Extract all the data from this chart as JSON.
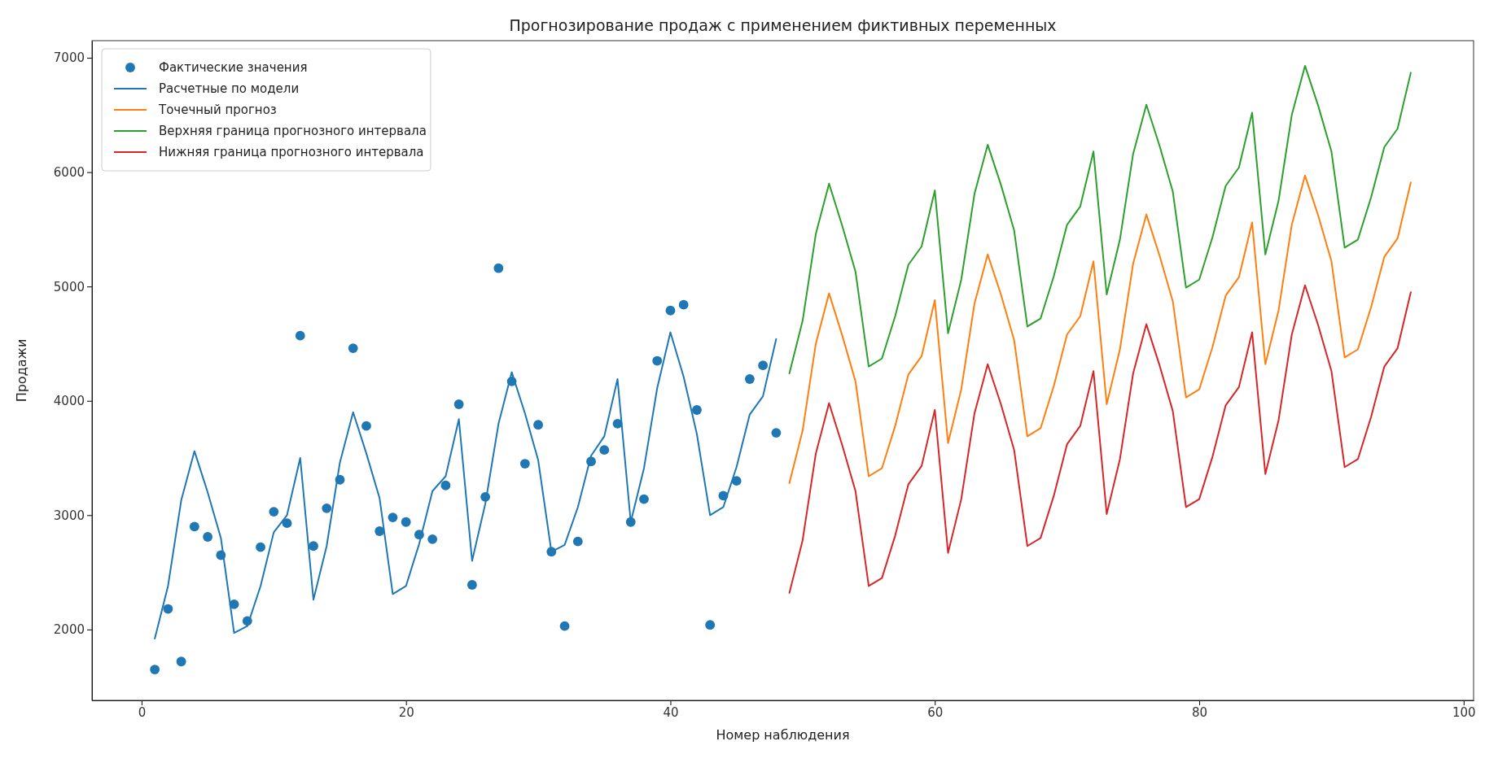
{
  "chart_data": {
    "type": "line",
    "title": "Прогнозирование продаж с применением фиктивных переменных",
    "xlabel": "Номер наблюдения",
    "ylabel": "Продажи",
    "xlim": [
      -3.75,
      100.75
    ],
    "xticks": [
      0,
      20,
      40,
      60,
      80,
      100
    ],
    "ylim": [
      1380,
      7150
    ],
    "yticks": [
      2000,
      3000,
      4000,
      5000,
      6000,
      7000
    ],
    "grid": false,
    "legend": "top left",
    "line_style": "solid",
    "series": [
      {
        "name": "Фактические значения",
        "type": "scatter",
        "marker": "circle",
        "color": "#1f77b4",
        "x": [
          1,
          2,
          3,
          4,
          5,
          6,
          7,
          8,
          9,
          10,
          11,
          12,
          13,
          14,
          15,
          16,
          17,
          18,
          19,
          20,
          21,
          22,
          23,
          24,
          25,
          26,
          27,
          28,
          29,
          30,
          31,
          32,
          33,
          34,
          35,
          36,
          37,
          38,
          39,
          40,
          41,
          42,
          43,
          44,
          45,
          46,
          47,
          48
        ],
        "values": [
          1650,
          2180,
          1720,
          2900,
          2810,
          2650,
          2220,
          2075,
          2720,
          3030,
          2930,
          4570,
          2730,
          3060,
          3310,
          4460,
          3780,
          2860,
          2980,
          2940,
          2830,
          2790,
          3260,
          3970,
          2390,
          3160,
          5160,
          4170,
          3450,
          3790,
          2680,
          2030,
          2770,
          3470,
          3570,
          3800,
          2940,
          3140,
          4350,
          4790,
          4840,
          3920,
          2040,
          3170,
          3300,
          4190,
          4310,
          3720
        ]
      },
      {
        "name": "Расчетные по модели",
        "color": "#1f77b4",
        "x": [
          1,
          2,
          3,
          4,
          5,
          6,
          7,
          8,
          9,
          10,
          11,
          12,
          13,
          14,
          15,
          16,
          17,
          18,
          19,
          20,
          21,
          22,
          23,
          24,
          25,
          26,
          27,
          28,
          29,
          30,
          31,
          32,
          33,
          34,
          35,
          36,
          37,
          38,
          39,
          40,
          41,
          42,
          43,
          44,
          45,
          46,
          47,
          48
        ],
        "values": [
          1920,
          2380,
          3130,
          3560,
          3200,
          2800,
          1970,
          2030,
          2380,
          2850,
          3000,
          3500,
          2260,
          2730,
          3460,
          3900,
          3540,
          3150,
          2310,
          2380,
          2750,
          3210,
          3340,
          3840,
          2600,
          3100,
          3800,
          4250,
          3890,
          3480,
          2680,
          2740,
          3070,
          3520,
          3690,
          4190,
          2940,
          3410,
          4110,
          4600,
          4210,
          3710,
          3000,
          3070,
          3420,
          3880,
          4040,
          4540
        ]
      },
      {
        "name": "Точечный прогноз",
        "color": "#ff7f0e",
        "x": [
          49,
          50,
          51,
          52,
          53,
          54,
          55,
          56,
          57,
          58,
          59,
          60,
          61,
          62,
          63,
          64,
          65,
          66,
          67,
          68,
          69,
          70,
          71,
          72,
          73,
          74,
          75,
          76,
          77,
          78,
          79,
          80,
          81,
          82,
          83,
          84,
          85,
          86,
          87,
          88,
          89,
          90,
          91,
          92,
          93,
          94,
          95,
          96
        ],
        "values": [
          3280,
          3740,
          4500,
          4940,
          4570,
          4170,
          3340,
          3410,
          3780,
          4230,
          4390,
          4880,
          3630,
          4100,
          4850,
          5280,
          4930,
          4530,
          3690,
          3760,
          4130,
          4580,
          4740,
          5220,
          3970,
          4450,
          5200,
          5630,
          5270,
          4870,
          4030,
          4100,
          4470,
          4920,
          5080,
          5560,
          4320,
          4790,
          5540,
          5970,
          5620,
          5220,
          4380,
          4450,
          4820,
          5260,
          5420,
          5910
        ]
      },
      {
        "name": "Верхняя граница прогнозного интервала",
        "color": "#2ca02c",
        "x": [
          49,
          50,
          51,
          52,
          53,
          54,
          55,
          56,
          57,
          58,
          59,
          60,
          61,
          62,
          63,
          64,
          65,
          66,
          67,
          68,
          69,
          70,
          71,
          72,
          73,
          74,
          75,
          76,
          77,
          78,
          79,
          80,
          81,
          82,
          83,
          84,
          85,
          86,
          87,
          88,
          89,
          90,
          91,
          92,
          93,
          94,
          95,
          96
        ],
        "values": [
          4240,
          4700,
          5460,
          5900,
          5530,
          5130,
          4300,
          4370,
          4740,
          5190,
          5350,
          5840,
          4590,
          5060,
          5810,
          6240,
          5890,
          5490,
          4650,
          4720,
          5090,
          5540,
          5700,
          6180,
          4930,
          5410,
          6160,
          6590,
          6230,
          5830,
          4990,
          5060,
          5430,
          5880,
          6040,
          6520,
          5280,
          5750,
          6500,
          6930,
          6580,
          6180,
          5340,
          5410,
          5780,
          6220,
          6380,
          6870
        ]
      },
      {
        "name": "Нижняя граница прогнозного интервала",
        "color": "#d62728",
        "x": [
          49,
          50,
          51,
          52,
          53,
          54,
          55,
          56,
          57,
          58,
          59,
          60,
          61,
          62,
          63,
          64,
          65,
          66,
          67,
          68,
          69,
          70,
          71,
          72,
          73,
          74,
          75,
          76,
          77,
          78,
          79,
          80,
          81,
          82,
          83,
          84,
          85,
          86,
          87,
          88,
          89,
          90,
          91,
          92,
          93,
          94,
          95,
          96
        ],
        "values": [
          2320,
          2780,
          3540,
          3980,
          3610,
          3210,
          2380,
          2450,
          2820,
          3270,
          3430,
          3920,
          2670,
          3140,
          3890,
          4320,
          3970,
          3570,
          2730,
          2800,
          3170,
          3620,
          3780,
          4260,
          3010,
          3490,
          4240,
          4670,
          4310,
          3910,
          3070,
          3140,
          3510,
          3960,
          4120,
          4600,
          3360,
          3830,
          4580,
          5010,
          4660,
          4260,
          3420,
          3490,
          3860,
          4300,
          4460,
          4950
        ]
      }
    ]
  }
}
